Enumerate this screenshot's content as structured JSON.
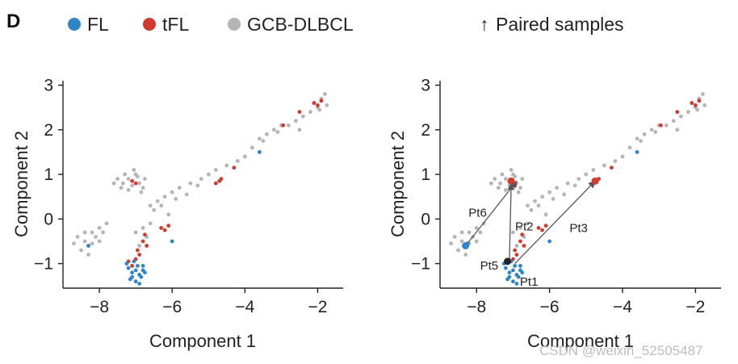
{
  "figure": {
    "panel_letter": "D",
    "legend": {
      "entries": [
        {
          "key": "FL",
          "label": "FL",
          "color": "#2e86c9"
        },
        {
          "key": "tFL",
          "label": "tFL",
          "color": "#d13a2f"
        },
        {
          "key": "GCB",
          "label": "GCB-DLBCL",
          "color": "#b5b5b5"
        }
      ],
      "paired_arrow_glyph": "↑",
      "paired_label": "Paired samples"
    },
    "watermark": "CSDN @weixin_52505487"
  },
  "chart_data": [
    {
      "type": "scatter",
      "title": "",
      "xlabel": "Component 1",
      "ylabel": "Component 2",
      "xlim": [
        -9,
        -1.3
      ],
      "ylim": [
        -1.55,
        3.1
      ],
      "xticks": [
        -8,
        -6,
        -4,
        -2
      ],
      "xtick_labels": [
        "−8",
        "−6",
        "−4",
        "−2"
      ],
      "yticks": [
        -1,
        0,
        1,
        2,
        3
      ],
      "ytick_labels": [
        "−1",
        "0",
        "1",
        "2",
        "3"
      ],
      "series": [
        {
          "name": "GCB-DLBCL",
          "color": "#b5b5b5",
          "points": [
            [
              -8.6,
              -0.4
            ],
            [
              -8.4,
              -0.5
            ],
            [
              -8.3,
              -0.6
            ],
            [
              -8.2,
              -0.3
            ],
            [
              -8.1,
              -0.4
            ],
            [
              -8.0,
              -0.2
            ],
            [
              -7.9,
              -0.3
            ],
            [
              -8.5,
              -0.7
            ],
            [
              -8.3,
              -0.8
            ],
            [
              -8.0,
              -0.5
            ],
            [
              -7.8,
              -0.1
            ],
            [
              -8.2,
              -0.55
            ],
            [
              -8.4,
              -0.3
            ],
            [
              -8.7,
              -0.55
            ],
            [
              -7.6,
              0.8
            ],
            [
              -7.4,
              0.7
            ],
            [
              -7.2,
              0.9
            ],
            [
              -7.0,
              1.0
            ],
            [
              -6.9,
              0.8
            ],
            [
              -6.8,
              0.7
            ],
            [
              -7.3,
              1.0
            ],
            [
              -7.1,
              0.75
            ],
            [
              -6.95,
              0.95
            ],
            [
              -7.5,
              0.9
            ],
            [
              -7.2,
              0.65
            ],
            [
              -6.85,
              0.6
            ],
            [
              -7.05,
              1.1
            ],
            [
              -7.35,
              0.8
            ],
            [
              -6.75,
              0.9
            ],
            [
              -6.6,
              0.3
            ],
            [
              -6.4,
              0.4
            ],
            [
              -6.2,
              0.5
            ],
            [
              -6.0,
              0.6
            ],
            [
              -5.8,
              0.7
            ],
            [
              -5.5,
              0.8
            ],
            [
              -5.2,
              0.9
            ],
            [
              -5.0,
              1.0
            ],
            [
              -4.8,
              1.1
            ],
            [
              -4.5,
              1.2
            ],
            [
              -4.2,
              1.3
            ],
            [
              -6.5,
              0.2
            ],
            [
              -6.3,
              0.3
            ],
            [
              -6.1,
              0.1
            ],
            [
              -5.9,
              0.45
            ],
            [
              -5.6,
              0.55
            ],
            [
              -5.3,
              0.75
            ],
            [
              -4.0,
              1.4
            ],
            [
              -3.8,
              1.6
            ],
            [
              -3.6,
              1.8
            ],
            [
              -3.4,
              1.9
            ],
            [
              -3.2,
              2.0
            ],
            [
              -3.0,
              2.1
            ],
            [
              -2.8,
              2.1
            ],
            [
              -2.6,
              2.2
            ],
            [
              -2.4,
              2.3
            ],
            [
              -2.2,
              2.4
            ],
            [
              -2.0,
              2.5
            ],
            [
              -1.9,
              2.7
            ],
            [
              -1.8,
              2.8
            ],
            [
              -2.1,
              2.6
            ],
            [
              -1.95,
              2.45
            ],
            [
              -3.1,
              1.95
            ],
            [
              -3.5,
              1.75
            ],
            [
              -2.5,
              2.0
            ],
            [
              -1.75,
              2.55
            ],
            [
              -6.8,
              -0.2
            ],
            [
              -6.7,
              -0.4
            ],
            [
              -6.6,
              -0.1
            ],
            [
              -6.9,
              -0.6
            ],
            [
              -7.0,
              -0.3
            ]
          ]
        },
        {
          "name": "tFL",
          "color": "#d13a2f",
          "points": [
            [
              -7.2,
              -0.95
            ],
            [
              -7.0,
              -0.9
            ],
            [
              -6.9,
              -0.8
            ],
            [
              -7.1,
              -1.05
            ],
            [
              -6.95,
              -0.7
            ],
            [
              -6.8,
              -0.5
            ],
            [
              -6.75,
              -0.35
            ],
            [
              -6.7,
              -0.6
            ],
            [
              -6.3,
              -0.2
            ],
            [
              -6.2,
              -0.25
            ],
            [
              -6.1,
              -0.15
            ],
            [
              -7.1,
              0.85
            ],
            [
              -7.0,
              0.8
            ],
            [
              -4.7,
              0.85
            ],
            [
              -4.8,
              0.8
            ],
            [
              -4.65,
              0.9
            ],
            [
              -2.1,
              2.6
            ],
            [
              -2.0,
              2.55
            ],
            [
              -1.9,
              2.65
            ],
            [
              -2.95,
              2.1
            ],
            [
              -2.5,
              2.4
            ],
            [
              -4.3,
              1.15
            ]
          ]
        },
        {
          "name": "FL",
          "color": "#2e86c9",
          "points": [
            [
              -7.2,
              -1.1
            ],
            [
              -7.1,
              -1.2
            ],
            [
              -7.0,
              -1.15
            ],
            [
              -6.9,
              -1.25
            ],
            [
              -7.15,
              -1.35
            ],
            [
              -6.95,
              -1.05
            ],
            [
              -6.85,
              -1.3
            ],
            [
              -7.05,
              -0.95
            ],
            [
              -6.8,
              -1.15
            ],
            [
              -7.25,
              -1.0
            ],
            [
              -7.0,
              -1.4
            ],
            [
              -6.9,
              -1.45
            ],
            [
              -6.75,
              -1.2
            ],
            [
              -7.1,
              -1.3
            ],
            [
              -6.8,
              -1.05
            ],
            [
              -8.3,
              -0.6
            ],
            [
              -6.0,
              -0.5
            ],
            [
              -3.6,
              1.5
            ]
          ]
        }
      ]
    },
    {
      "type": "scatter",
      "title": "",
      "xlabel": "Component 1",
      "ylabel": "Component 2",
      "xlim": [
        -9,
        -1.3
      ],
      "ylim": [
        -1.55,
        3.1
      ],
      "xticks": [
        -8,
        -6,
        -4,
        -2
      ],
      "xtick_labels": [
        "−8",
        "−6",
        "−4",
        "−2"
      ],
      "yticks": [
        -1,
        0,
        1,
        2,
        3
      ],
      "ytick_labels": [
        "−1",
        "0",
        "1",
        "2",
        "3"
      ],
      "series": [
        {
          "name": "GCB-DLBCL",
          "color": "#b5b5b5",
          "points": [
            [
              -8.6,
              -0.4
            ],
            [
              -8.4,
              -0.5
            ],
            [
              -8.3,
              -0.6
            ],
            [
              -8.2,
              -0.3
            ],
            [
              -8.1,
              -0.4
            ],
            [
              -8.0,
              -0.2
            ],
            [
              -7.9,
              -0.3
            ],
            [
              -8.5,
              -0.7
            ],
            [
              -8.3,
              -0.8
            ],
            [
              -8.0,
              -0.5
            ],
            [
              -7.8,
              -0.1
            ],
            [
              -8.2,
              -0.55
            ],
            [
              -8.4,
              -0.3
            ],
            [
              -8.7,
              -0.55
            ],
            [
              -7.6,
              0.8
            ],
            [
              -7.4,
              0.7
            ],
            [
              -7.2,
              0.9
            ],
            [
              -7.0,
              1.0
            ],
            [
              -6.9,
              0.8
            ],
            [
              -6.8,
              0.7
            ],
            [
              -7.3,
              1.0
            ],
            [
              -7.1,
              0.75
            ],
            [
              -6.95,
              0.95
            ],
            [
              -7.5,
              0.9
            ],
            [
              -7.2,
              0.65
            ],
            [
              -6.85,
              0.6
            ],
            [
              -7.05,
              1.1
            ],
            [
              -7.35,
              0.8
            ],
            [
              -6.75,
              0.9
            ],
            [
              -6.6,
              0.3
            ],
            [
              -6.4,
              0.4
            ],
            [
              -6.2,
              0.5
            ],
            [
              -6.0,
              0.6
            ],
            [
              -5.8,
              0.7
            ],
            [
              -5.5,
              0.8
            ],
            [
              -5.2,
              0.9
            ],
            [
              -5.0,
              1.0
            ],
            [
              -4.8,
              1.1
            ],
            [
              -4.5,
              1.2
            ],
            [
              -4.2,
              1.3
            ],
            [
              -6.5,
              0.2
            ],
            [
              -6.3,
              0.3
            ],
            [
              -6.1,
              0.1
            ],
            [
              -5.9,
              0.45
            ],
            [
              -5.6,
              0.55
            ],
            [
              -5.3,
              0.75
            ],
            [
              -4.0,
              1.4
            ],
            [
              -3.8,
              1.6
            ],
            [
              -3.6,
              1.8
            ],
            [
              -3.4,
              1.9
            ],
            [
              -3.2,
              2.0
            ],
            [
              -3.0,
              2.1
            ],
            [
              -2.8,
              2.1
            ],
            [
              -2.6,
              2.2
            ],
            [
              -2.4,
              2.3
            ],
            [
              -2.2,
              2.4
            ],
            [
              -2.0,
              2.5
            ],
            [
              -1.9,
              2.7
            ],
            [
              -1.8,
              2.8
            ],
            [
              -2.1,
              2.6
            ],
            [
              -1.95,
              2.45
            ],
            [
              -3.1,
              1.95
            ],
            [
              -3.5,
              1.75
            ],
            [
              -2.5,
              2.0
            ],
            [
              -1.75,
              2.55
            ],
            [
              -6.8,
              -0.2
            ],
            [
              -6.7,
              -0.4
            ],
            [
              -6.6,
              -0.1
            ],
            [
              -6.9,
              -0.6
            ],
            [
              -7.0,
              -0.3
            ]
          ]
        },
        {
          "name": "tFL",
          "color": "#d13a2f",
          "points": [
            [
              -7.2,
              -0.95
            ],
            [
              -7.0,
              -0.9
            ],
            [
              -6.9,
              -0.8
            ],
            [
              -6.95,
              -0.7
            ],
            [
              -6.8,
              -0.5
            ],
            [
              -6.75,
              -0.35
            ],
            [
              -6.7,
              -0.6
            ],
            [
              -6.3,
              -0.2
            ],
            [
              -6.2,
              -0.25
            ],
            [
              -6.1,
              -0.15
            ],
            [
              -7.1,
              0.85
            ],
            [
              -7.0,
              0.8
            ],
            [
              -6.95,
              0.75
            ],
            [
              -4.7,
              0.85
            ],
            [
              -4.8,
              0.8
            ],
            [
              -4.65,
              0.9
            ],
            [
              -2.1,
              2.6
            ],
            [
              -2.0,
              2.55
            ],
            [
              -1.9,
              2.65
            ],
            [
              -2.95,
              2.1
            ],
            [
              -2.5,
              2.4
            ],
            [
              -4.3,
              1.15
            ]
          ]
        },
        {
          "name": "FL",
          "color": "#2e86c9",
          "points": [
            [
              -7.2,
              -1.1
            ],
            [
              -7.1,
              -1.2
            ],
            [
              -7.0,
              -1.15
            ],
            [
              -6.9,
              -1.25
            ],
            [
              -7.15,
              -1.35
            ],
            [
              -6.95,
              -1.05
            ],
            [
              -6.85,
              -1.3
            ],
            [
              -7.05,
              -0.95
            ],
            [
              -6.8,
              -1.15
            ],
            [
              -7.25,
              -1.0
            ],
            [
              -7.0,
              -1.4
            ],
            [
              -6.9,
              -1.45
            ],
            [
              -6.75,
              -1.2
            ],
            [
              -7.1,
              -1.3
            ],
            [
              -6.8,
              -1.05
            ],
            [
              -8.3,
              -0.6
            ],
            [
              -8.25,
              -0.55
            ],
            [
              -6.0,
              -0.5
            ],
            [
              -3.6,
              1.5
            ]
          ]
        }
      ],
      "paired_arrows": [
        {
          "label": "Pt6",
          "from": [
            -8.3,
            -0.6
          ],
          "to": [
            -6.9,
            0.85
          ]
        },
        {
          "label": "Pt2",
          "from": [
            -7.1,
            -0.95
          ],
          "to": [
            -7.05,
            0.8
          ]
        },
        {
          "label": "Pt3",
          "from": [
            -6.95,
            -1.0
          ],
          "to": [
            -4.75,
            0.85
          ]
        },
        {
          "label": "Pt5",
          "from": [
            -7.15,
            -0.95
          ],
          "to": [
            -7.15,
            -0.95
          ]
        },
        {
          "label": "Pt1",
          "from": [
            -6.9,
            -1.1
          ],
          "to": [
            -6.9,
            -1.1
          ]
        }
      ],
      "paired_points": [
        {
          "color": "#2e86c9",
          "point": [
            -8.3,
            -0.6
          ]
        },
        {
          "color": "#d13a2f",
          "point": [
            -7.05,
            0.85
          ]
        },
        {
          "color": "#d13a2f",
          "point": [
            -4.75,
            0.85
          ]
        },
        {
          "color": "#222222",
          "point": [
            -7.15,
            -0.95
          ]
        }
      ]
    }
  ]
}
